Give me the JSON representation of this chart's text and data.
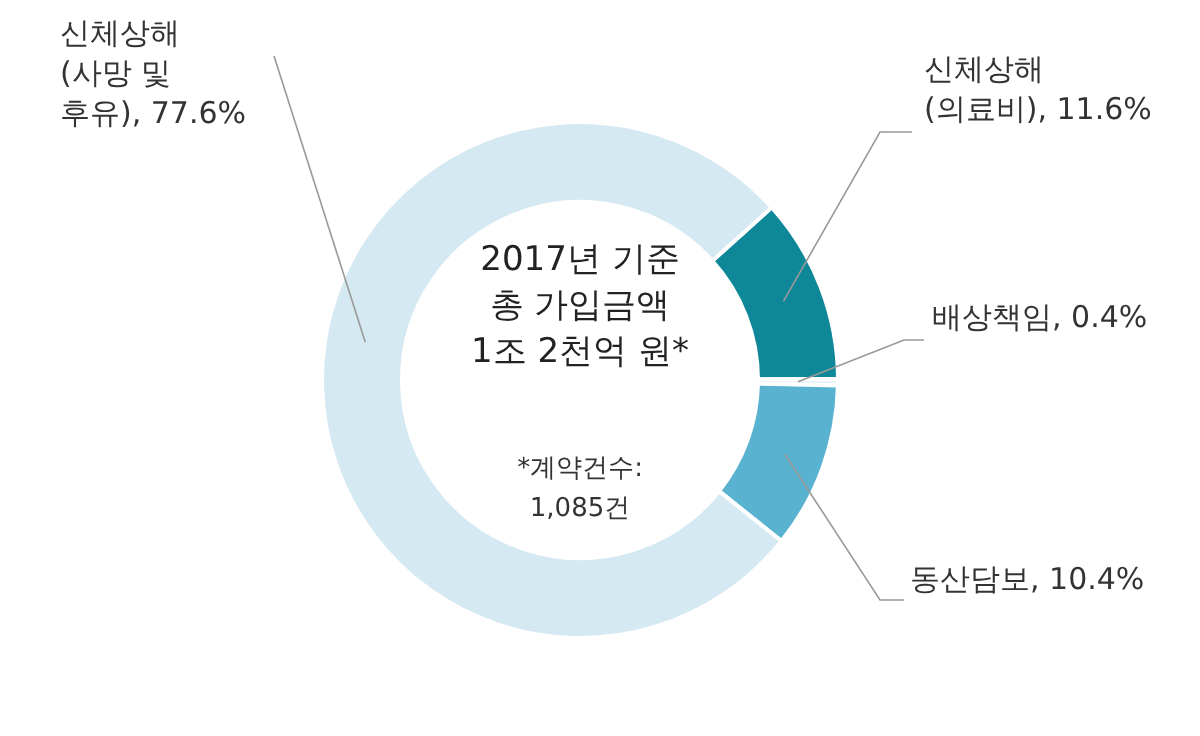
{
  "chart_data": {
    "type": "donut",
    "categories": [
      "신체상해\n(의료비)",
      "배상책임",
      "동산담보",
      "신체상해\n(사망 및\n후유)"
    ],
    "values": [
      11.6,
      0.4,
      10.4,
      77.6
    ],
    "value_labels": [
      "11.6%",
      "0.4%",
      "10.4%",
      "77.6%"
    ],
    "colors": [
      "#0e8798",
      "#e6f2f7",
      "#58b2d0",
      "#d5e9f2"
    ],
    "annotations": [
      "2017년 기준\n총 가입금액\n1조 2천억 원*",
      "*계약건수:\n1,085건"
    ],
    "legend": false
  }
}
